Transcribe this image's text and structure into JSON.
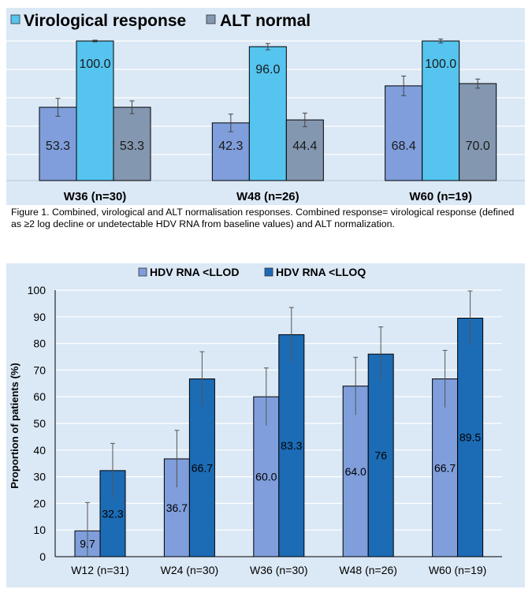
{
  "chart_data": [
    {
      "type": "bar",
      "categories": [
        "W36 (n=30)",
        "W48 (n=26)",
        "W60 (n=19)"
      ],
      "series": [
        {
          "name": "",
          "values": [
            53.3,
            42.3,
            68.4
          ],
          "error": [
            6.3,
            6.2,
            6.9
          ],
          "color": "#7f9edb"
        },
        {
          "name": "Virological response",
          "values": [
            100.0,
            96.0,
            100.0
          ],
          "error": [
            0.6,
            2.2,
            1.4
          ],
          "color": "#55c4ef"
        },
        {
          "name": "ALT normal",
          "values": [
            53.3,
            44.4,
            70.0
          ],
          "error": [
            4.5,
            4.8,
            3.2
          ],
          "color": "#8497b0"
        }
      ],
      "data_labels": [
        [
          "53.3",
          "42.3",
          "68.4"
        ],
        [
          "100.0",
          "96.0",
          "100.0"
        ],
        [
          "53.3",
          "44.4",
          "70.0"
        ]
      ],
      "ylim": [
        0,
        100
      ],
      "grid": true,
      "legend": "top-left",
      "background": "#dbe8f5"
    },
    {
      "type": "bar",
      "categories": [
        "W12 (n=31)",
        "W24 (n=30)",
        "W36 (n=30)",
        "W48 (n=26)",
        "W60 (n=19)"
      ],
      "series": [
        {
          "name": "HDV RNA <LLOD",
          "values": [
            9.7,
            36.7,
            60.0,
            64.0,
            66.7
          ],
          "error": [
            10.6,
            10.7,
            10.8,
            10.8,
            10.7
          ],
          "color": "#7f9edb"
        },
        {
          "name": "HDV RNA <LLOQ",
          "values": [
            32.3,
            66.7,
            83.3,
            76,
            89.5
          ],
          "error": [
            10.2,
            10.2,
            10.2,
            10.2,
            10.2
          ],
          "color": "#1c6bb5"
        }
      ],
      "data_labels": [
        [
          "9.7",
          "36.7",
          "60.0",
          "64.0",
          "66.7"
        ],
        [
          "32.3",
          "66.7",
          "83.3",
          "76",
          "89.5"
        ]
      ],
      "ylabel": "Proportion of patients (%)",
      "ylim": [
        0,
        100
      ],
      "yticks": [
        "0",
        "10",
        "20",
        "30",
        "40",
        "50",
        "60",
        "70",
        "80",
        "90",
        "100"
      ],
      "grid": true,
      "legend": "top-center",
      "background": "#dbe8f5"
    }
  ],
  "caption": "Figure 1. Combined, virological and ALT normalisation responses. Combined response= virological response (defined as ≥2 log decline or undetectable HDV RNA from baseline values) and ALT normalization."
}
